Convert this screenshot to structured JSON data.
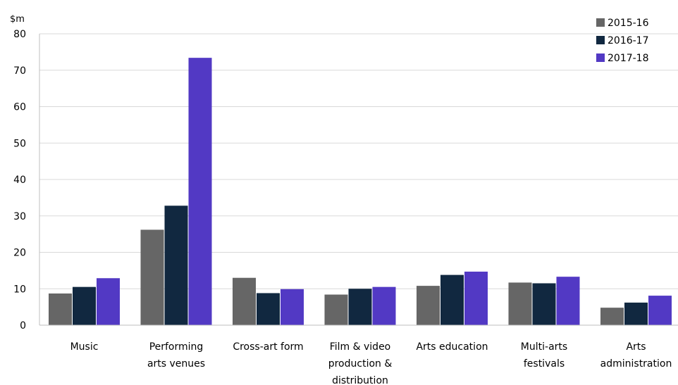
{
  "chart_data": {
    "type": "bar",
    "ylabel": "$m",
    "ylim": [
      0,
      80
    ],
    "yticks": [
      0,
      10,
      20,
      30,
      40,
      50,
      60,
      70,
      80
    ],
    "grid": true,
    "legend_position": "top-right",
    "categories": [
      [
        "Music"
      ],
      [
        "Performing",
        "arts venues"
      ],
      [
        "Cross-art form"
      ],
      [
        "Film & video",
        "production &",
        "distribution"
      ],
      [
        "Arts education"
      ],
      [
        "Multi-arts",
        "festivals"
      ],
      [
        "Arts",
        "administration"
      ]
    ],
    "series": [
      {
        "name": "2015-16",
        "color": "#666666",
        "values": [
          8.7,
          26.2,
          13.0,
          8.4,
          10.8,
          11.7,
          4.8
        ]
      },
      {
        "name": "2016-17",
        "color": "#112840",
        "values": [
          10.5,
          32.8,
          8.8,
          10.0,
          13.8,
          11.5,
          6.2
        ]
      },
      {
        "name": "2017-18",
        "color": "#5239c4",
        "values": [
          12.9,
          73.4,
          9.9,
          10.5,
          14.7,
          13.3,
          8.1
        ]
      }
    ]
  }
}
